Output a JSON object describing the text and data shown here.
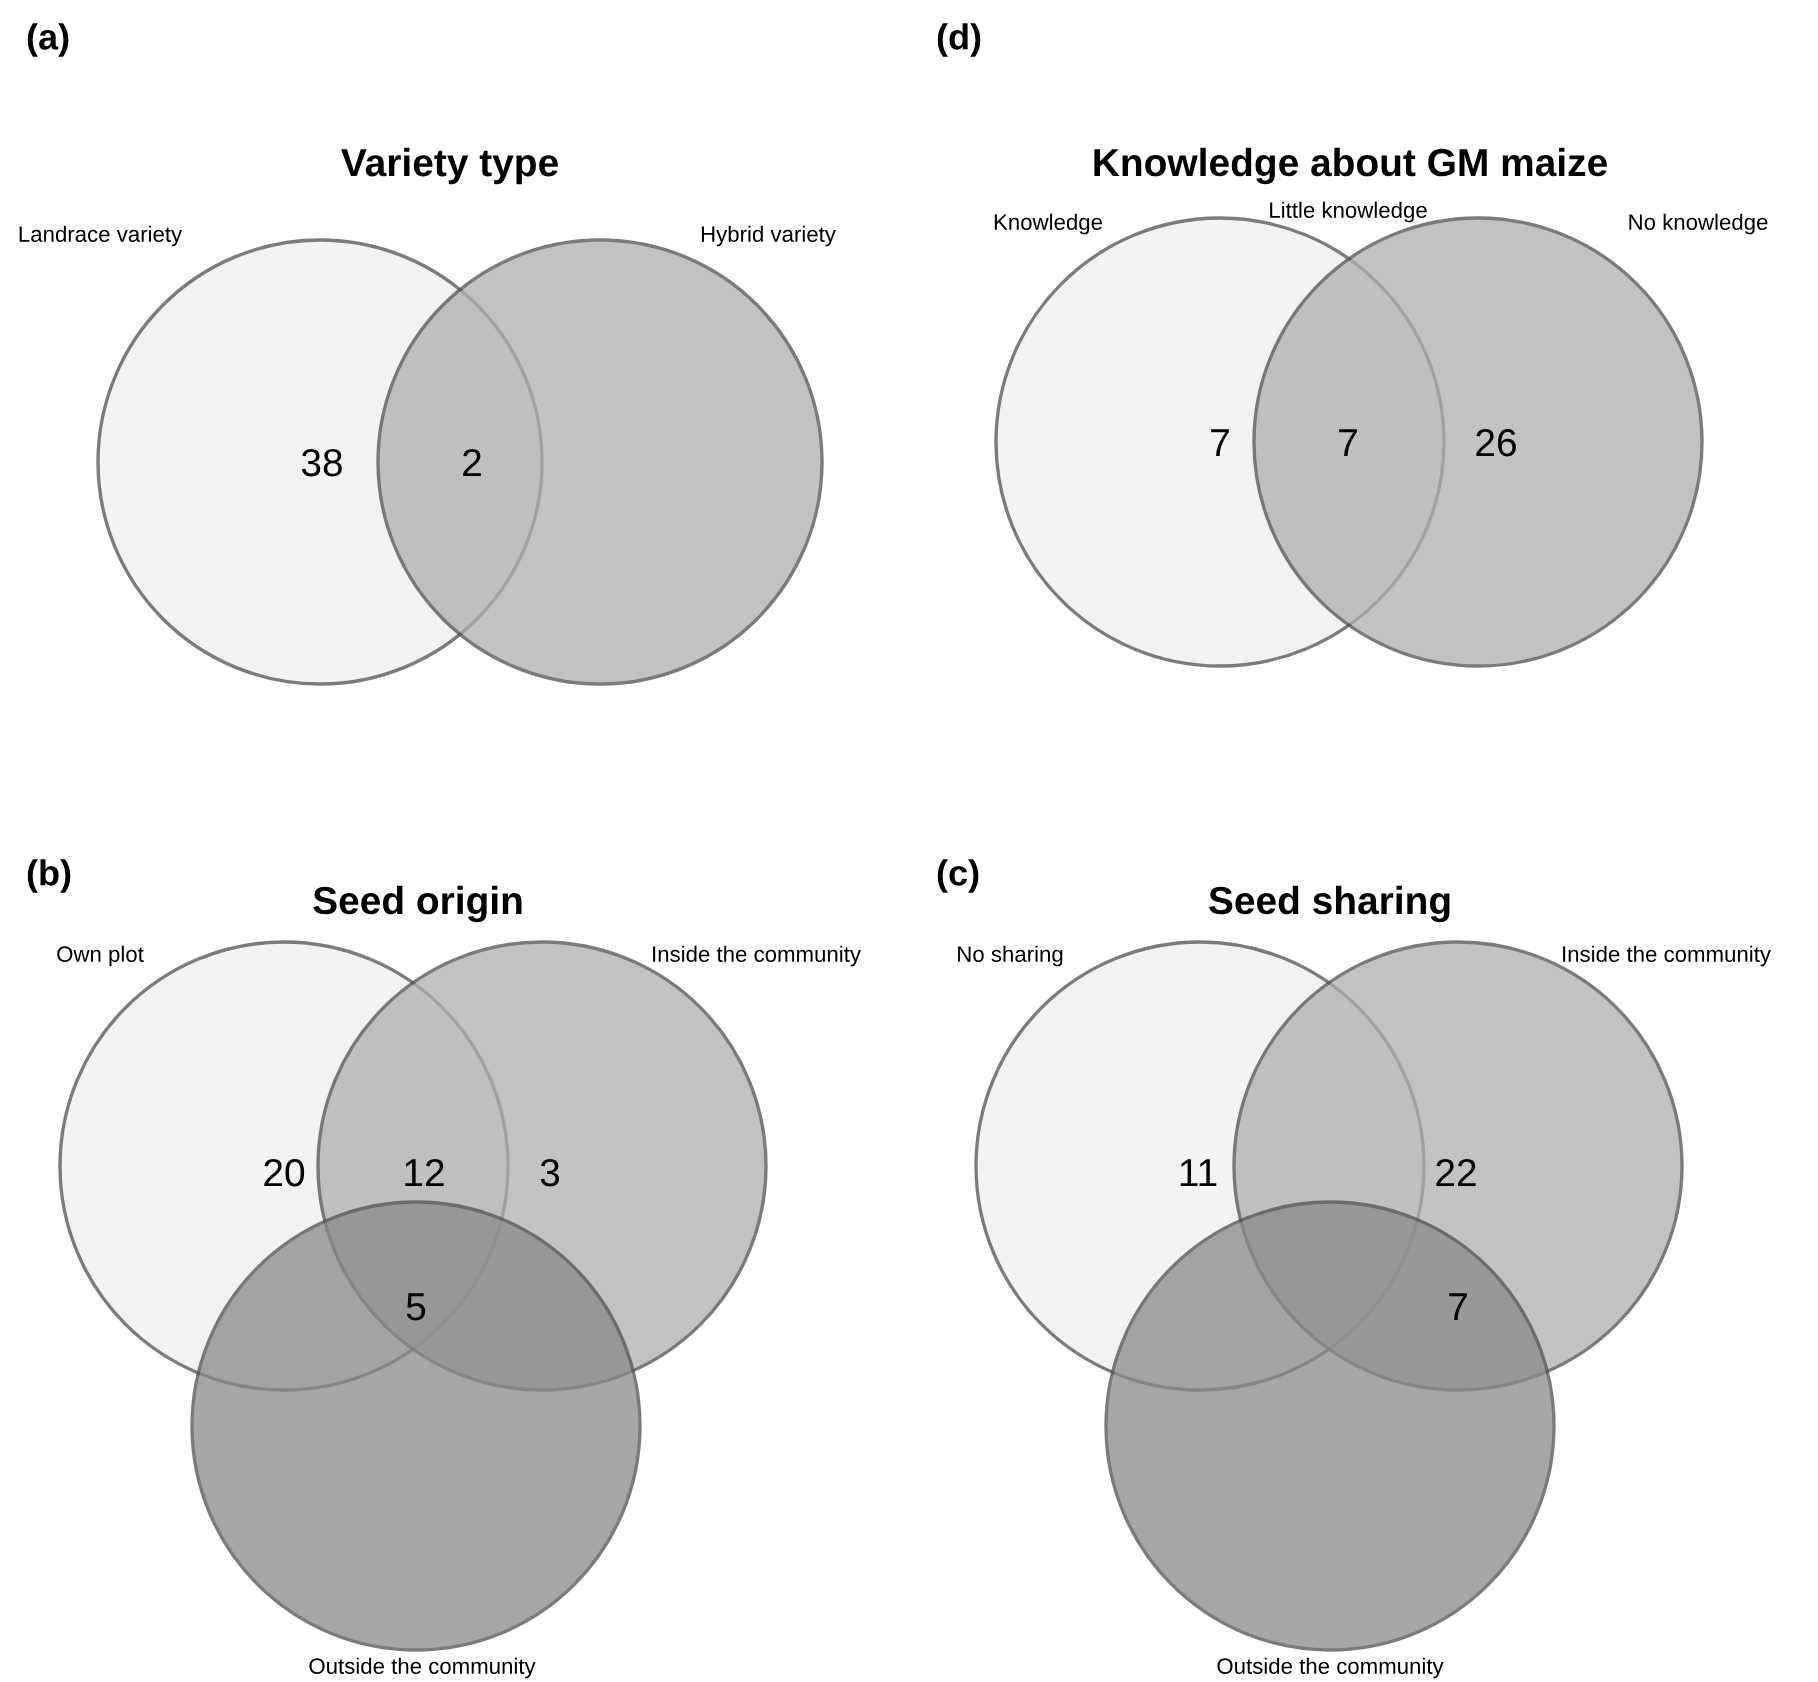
{
  "chart_data": [
    {
      "type": "other",
      "title": "Variety type",
      "categories": [
        null,
        null
      ],
      "values": [
        38,
        2
      ],
      "data_labels": true,
      "annotations": [
        "(a)",
        "Landrace variety",
        "Hybrid variety"
      ]
    },
    {
      "type": "other",
      "title": "Knowledge about GM maize",
      "categories": [
        null,
        null,
        null
      ],
      "values": [
        7,
        7,
        26
      ],
      "data_labels": true,
      "annotations": [
        "(d)",
        "Knowledge",
        "Little knowledge",
        "No knowledge"
      ]
    },
    {
      "type": "other",
      "title": "Seed origin",
      "categories": [
        null,
        null,
        null,
        null
      ],
      "values": [
        20,
        12,
        3,
        5
      ],
      "data_labels": true,
      "annotations": [
        "(b)",
        "Own plot",
        "Inside the community",
        "Outside the community"
      ]
    },
    {
      "type": "other",
      "title": "Seed sharing",
      "categories": [
        null,
        null,
        null
      ],
      "values": [
        11,
        22,
        7
      ],
      "data_labels": true,
      "annotations": [
        "(c)",
        "No sharing",
        "Inside the community",
        "Outside the community"
      ]
    }
  ]
}
